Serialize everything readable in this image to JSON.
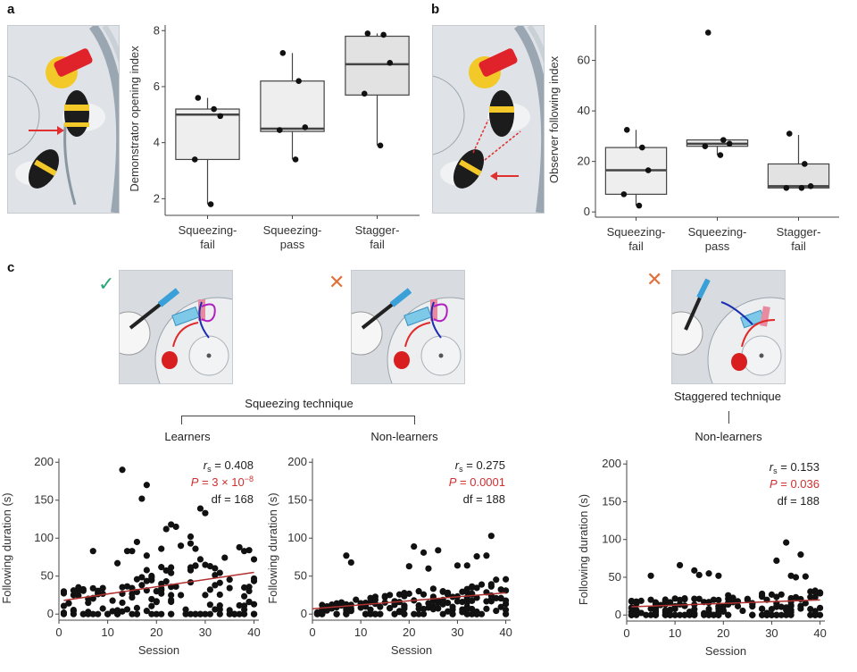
{
  "panels": {
    "a_letter": "a",
    "b_letter": "b",
    "c_letter": "c"
  },
  "illustrations": {
    "a": {
      "description": "bee-demonstrator-opening",
      "arrow_color": "#e03030"
    },
    "b": {
      "description": "bee-observer-following",
      "arrow_color": "#e03030"
    },
    "c1": {
      "mark": "✓",
      "mark_color": "#2aa876"
    },
    "c2": {
      "mark": "✕",
      "mark_color": "#e0703a"
    },
    "c3": {
      "mark": "✕",
      "mark_color": "#e0703a"
    }
  },
  "technique_labels": {
    "squeezing": "Squeezing technique",
    "staggered": "Staggered technique",
    "learners": "Learners",
    "non_learners_1": "Non-learners",
    "non_learners_2": "Non-learners"
  },
  "chart_data": [
    {
      "id": "a",
      "type": "box",
      "ylabel": "Demonstrator opening index",
      "xlabel": "",
      "ylim": [
        1.5,
        8.2
      ],
      "yticks": [
        2,
        4,
        6,
        8
      ],
      "categories": [
        [
          "Squeezing-",
          "fail"
        ],
        [
          "Squeezing-",
          "pass"
        ],
        [
          "Stagger-",
          "fail"
        ]
      ],
      "boxes": [
        {
          "q1": 3.4,
          "median": 5.0,
          "q3": 5.2,
          "whisker_low": 1.8,
          "whisker_high": 5.6,
          "points": [
            5.6,
            5.2,
            4.95,
            3.4,
            1.8
          ],
          "fill": "#eeeeee"
        },
        {
          "q1": 4.4,
          "median": 4.5,
          "q3": 6.2,
          "whisker_low": 3.4,
          "whisker_high": 7.2,
          "points": [
            7.2,
            6.2,
            4.55,
            4.45,
            3.4
          ],
          "fill": "#eeeeee"
        },
        {
          "q1": 5.7,
          "median": 6.8,
          "q3": 7.8,
          "whisker_low": 3.9,
          "whisker_high": 7.9,
          "points": [
            7.9,
            7.85,
            6.85,
            5.75,
            3.9
          ],
          "fill": "#e2e2e2"
        }
      ]
    },
    {
      "id": "b",
      "type": "box",
      "ylabel": "Observer following index",
      "xlabel": "",
      "ylim": [
        -1,
        74
      ],
      "yticks": [
        0,
        20,
        40,
        60
      ],
      "categories": [
        [
          "Squeezing-",
          "fail"
        ],
        [
          "Squeezing-",
          "pass"
        ],
        [
          "Stagger-",
          "fail"
        ]
      ],
      "boxes": [
        {
          "q1": 7,
          "median": 16.5,
          "q3": 25.5,
          "whisker_low": 2.5,
          "whisker_high": 32.5,
          "points": [
            32.5,
            25.5,
            16.5,
            7,
            2.5
          ],
          "fill": "#eeeeee"
        },
        {
          "q1": 26,
          "median": 27,
          "q3": 28.5,
          "whisker_low": 22.5,
          "whisker_high": 28.5,
          "points": [
            71,
            28.5,
            27,
            26,
            22.5
          ],
          "fill": "#eeeeee"
        },
        {
          "q1": 9.5,
          "median": 10.2,
          "q3": 19,
          "whisker_low": 9.5,
          "whisker_high": 30.5,
          "points": [
            31,
            19,
            10.2,
            9.5,
            9.5
          ],
          "fill": "#e2e2e2"
        }
      ]
    },
    {
      "id": "c-learners",
      "type": "scatter",
      "title": "Learners",
      "xlabel": "Session",
      "ylabel": "Following duration (s)",
      "xlim": [
        0,
        41
      ],
      "ylim": [
        -8,
        205
      ],
      "xticks": [
        0,
        10,
        20,
        30,
        40
      ],
      "yticks": [
        0,
        50,
        100,
        150,
        200
      ],
      "stats": {
        "rs": "= 0.408",
        "p": "P = 3 × 10",
        "p_exp": "−8",
        "df": "df = 168"
      },
      "fit": {
        "x": [
          1,
          40
        ],
        "y": [
          18,
          55
        ],
        "color": "#b03030"
      },
      "n_points": 170,
      "notable_points": [
        [
          13,
          190
        ],
        [
          18,
          170
        ],
        [
          17,
          152
        ],
        [
          29,
          139
        ],
        [
          30,
          133
        ],
        [
          23,
          118
        ],
        [
          24,
          115
        ],
        [
          22,
          112
        ],
        [
          27,
          102
        ],
        [
          27,
          93
        ],
        [
          16,
          95
        ],
        [
          25,
          90
        ],
        [
          28,
          86
        ],
        [
          21,
          86
        ],
        [
          37,
          88
        ],
        [
          38,
          83
        ],
        [
          7,
          83
        ],
        [
          14,
          83
        ],
        [
          15,
          83
        ],
        [
          18,
          77
        ],
        [
          12,
          67
        ]
      ],
      "seed": 11
    },
    {
      "id": "c-nonlearners-squeezing",
      "type": "scatter",
      "title": "Non-learners",
      "xlabel": "Session",
      "ylabel": "Following duration (s)",
      "xlim": [
        0,
        41
      ],
      "ylim": [
        -8,
        205
      ],
      "xticks": [
        0,
        10,
        20,
        30,
        40
      ],
      "yticks": [
        0,
        50,
        100,
        150,
        200
      ],
      "stats": {
        "rs": "= 0.275",
        "p": "P = 0.0001",
        "p_exp": "",
        "df": "df = 188"
      },
      "fit": {
        "x": [
          0,
          40
        ],
        "y": [
          7,
          28
        ],
        "color": "#b03030"
      },
      "n_points": 190,
      "notable_points": [
        [
          37,
          103
        ],
        [
          21,
          89
        ],
        [
          26,
          84
        ],
        [
          23,
          81
        ],
        [
          7,
          77
        ],
        [
          36,
          77
        ],
        [
          34,
          76
        ],
        [
          8,
          68
        ],
        [
          30,
          64
        ],
        [
          32,
          64
        ],
        [
          20,
          63
        ],
        [
          24,
          60
        ]
      ],
      "seed": 23
    },
    {
      "id": "c-nonlearners-staggered",
      "type": "scatter",
      "title": "Non-learners",
      "xlabel": "Session",
      "ylabel": "Following duration (s)",
      "xlim": [
        0,
        41
      ],
      "ylim": [
        -8,
        205
      ],
      "xticks": [
        0,
        10,
        20,
        30,
        40
      ],
      "yticks": [
        0,
        50,
        100,
        150,
        200
      ],
      "stats": {
        "rs": "= 0.153",
        "p": "P = 0.036",
        "p_exp": "",
        "df": "df = 188"
      },
      "fit": {
        "x": [
          1,
          40
        ],
        "y": [
          11,
          20
        ],
        "color": "#b03030"
      },
      "n_points": 190,
      "notable_points": [
        [
          33,
          96
        ],
        [
          36,
          80
        ],
        [
          31,
          72
        ],
        [
          11,
          66
        ],
        [
          14,
          59
        ],
        [
          17,
          55
        ],
        [
          5,
          52
        ],
        [
          15,
          53
        ],
        [
          35,
          50
        ],
        [
          37,
          51
        ],
        [
          34,
          52
        ],
        [
          19,
          52
        ]
      ],
      "seed": 37
    }
  ]
}
